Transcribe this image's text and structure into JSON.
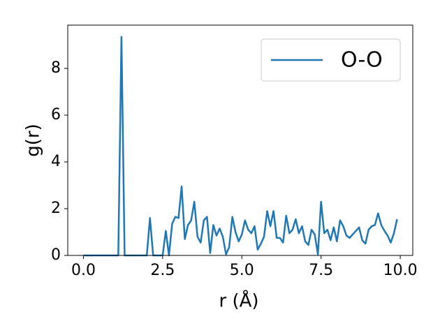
{
  "chart_data": {
    "type": "line",
    "xlabel": "r (Å)",
    "ylabel": "g(r)",
    "x": [
      0,
      0.1,
      0.2,
      0.3,
      0.4,
      0.5,
      0.6,
      0.7,
      0.8,
      0.9,
      1.0,
      1.1,
      1.2,
      1.3,
      1.4,
      1.5,
      1.6,
      1.7,
      1.8,
      1.9,
      2.0,
      2.1,
      2.2,
      2.3,
      2.4,
      2.5,
      2.6,
      2.7,
      2.8,
      2.9,
      3.0,
      3.1,
      3.2,
      3.3,
      3.4,
      3.5,
      3.6,
      3.7,
      3.8,
      3.9,
      4.0,
      4.1,
      4.2,
      4.3,
      4.4,
      4.5,
      4.6,
      4.7,
      4.8,
      4.9,
      5.0,
      5.1,
      5.2,
      5.3,
      5.4,
      5.5,
      5.6,
      5.7,
      5.8,
      5.9,
      6.0,
      6.1,
      6.2,
      6.3,
      6.4,
      6.5,
      6.6,
      6.7,
      6.8,
      6.9,
      7.0,
      7.1,
      7.2,
      7.3,
      7.4,
      7.5,
      7.6,
      7.7,
      7.8,
      7.9,
      8.0,
      8.1,
      8.2,
      8.3,
      8.4,
      8.5,
      8.6,
      8.7,
      8.8,
      8.9,
      9.0,
      9.1,
      9.2,
      9.3,
      9.4,
      9.5,
      9.6,
      9.7,
      9.8,
      9.9
    ],
    "series": [
      {
        "name": "O-O",
        "color": "#1f77b4",
        "values": [
          0,
          0,
          0,
          0,
          0,
          0,
          0,
          0,
          0,
          0,
          0,
          0,
          9.35,
          0,
          0,
          0,
          0,
          0,
          0,
          0,
          0,
          1.6,
          0,
          0,
          0,
          0,
          1.05,
          0,
          1.35,
          1.65,
          1.6,
          2.95,
          0.7,
          1.3,
          1.5,
          2.3,
          0.8,
          0.55,
          1.5,
          1.65,
          0.1,
          1.3,
          0.85,
          1.15,
          0.8,
          0.05,
          0.35,
          1.65,
          1.0,
          0.6,
          0.9,
          1.5,
          1.1,
          0.95,
          1.25,
          0.25,
          0.5,
          0.8,
          1.9,
          1.25,
          1.9,
          0.75,
          0.75,
          0.55,
          1.7,
          0.95,
          1.1,
          1.55,
          0.95,
          1.25,
          0.6,
          0.45,
          1.1,
          0.9,
          0.05,
          2.3,
          0.95,
          1.1,
          0.65,
          1.2,
          0.6,
          1.5,
          1.25,
          0.85,
          0.75,
          0.9,
          1.05,
          1.2,
          0.65,
          0.5,
          1.1,
          1.25,
          1.3,
          1.8,
          1.3,
          1.05,
          0.85,
          0.55,
          0.95,
          1.55
        ]
      }
    ],
    "xlim": [
      -0.495,
      10.395
    ],
    "xticks": [
      {
        "value": 0,
        "label": "0.0"
      },
      2.5,
      {
        "value": 5,
        "label": "5.0"
      },
      7.5,
      {
        "value": 10,
        "label": "10.0"
      }
    ],
    "ylim": [
      0,
      9.85
    ],
    "yticks": [
      0,
      2,
      4,
      6,
      8
    ],
    "legend": "upper right",
    "grid": false
  }
}
